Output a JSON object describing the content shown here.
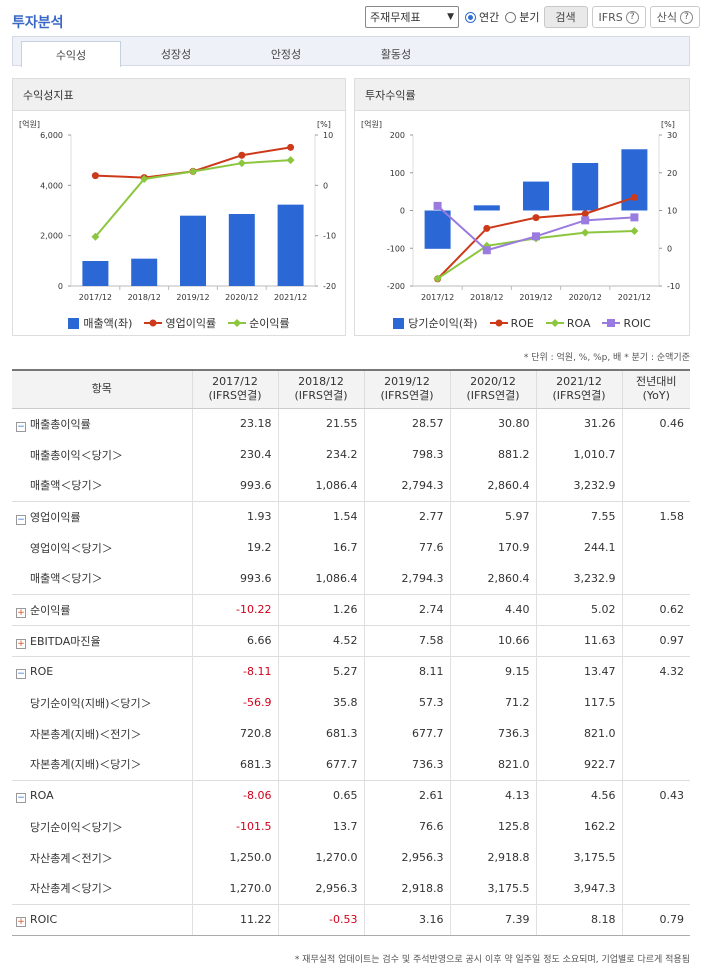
{
  "header": {
    "title": "투자분석"
  },
  "controls": {
    "select_value": "주재무제표",
    "radio_annual": "연간",
    "radio_quarter": "분기",
    "search_button": "검색",
    "ifrs_button": "IFRS",
    "formula_button": "산식",
    "help": "?"
  },
  "tabs": [
    "수익성",
    "성장성",
    "안정성",
    "활동성"
  ],
  "colors": {
    "bar": "#2b68d6",
    "red": "#cc3a1a",
    "green": "#8cc63f",
    "purple": "#9a7be0",
    "title": "#3a67c5"
  },
  "left_panel": {
    "title": "수익성지표"
  },
  "right_panel": {
    "title": "투자수익률"
  },
  "chart_data": [
    {
      "type": "bar",
      "title": "수익성지표",
      "categories": [
        "2017/12",
        "2018/12",
        "2019/12",
        "2020/12",
        "2021/12"
      ],
      "left_unit": "[억원]",
      "right_unit": "[%]",
      "ylim_left": [
        0,
        6000
      ],
      "ylim_right": [
        -20,
        10
      ],
      "left_ticks": [
        "6,000",
        "4,000",
        "2,000",
        "0"
      ],
      "right_ticks": [
        "10",
        "0",
        "-10",
        "-20"
      ],
      "series": [
        {
          "name": "매출액(좌)",
          "kind": "bar",
          "axis": "left",
          "values": [
            993.6,
            1086.4,
            2794.3,
            2860.4,
            3232.9
          ]
        },
        {
          "name": "영업이익률",
          "kind": "line",
          "axis": "right",
          "values": [
            1.93,
            1.54,
            2.77,
            5.97,
            7.55
          ]
        },
        {
          "name": "순이익률",
          "kind": "line",
          "axis": "right",
          "values": [
            -10.22,
            1.26,
            2.74,
            4.4,
            5.02
          ]
        }
      ]
    },
    {
      "type": "bar",
      "title": "투자수익률",
      "categories": [
        "2017/12",
        "2018/12",
        "2019/12",
        "2020/12",
        "2021/12"
      ],
      "left_unit": "[억원]",
      "right_unit": "[%]",
      "ylim_left": [
        -200,
        200
      ],
      "ylim_right": [
        -10,
        30
      ],
      "left_ticks": [
        "200",
        "100",
        "0",
        "-100",
        "-200"
      ],
      "right_ticks": [
        "30",
        "20",
        "10",
        "0",
        "-10"
      ],
      "series": [
        {
          "name": "당기순이익(좌)",
          "kind": "bar",
          "axis": "left",
          "values": [
            -101.5,
            13.7,
            76.6,
            125.8,
            162.2
          ]
        },
        {
          "name": "ROE",
          "kind": "line",
          "axis": "right",
          "values": [
            -8.11,
            5.27,
            8.11,
            9.15,
            13.47
          ]
        },
        {
          "name": "ROA",
          "kind": "line",
          "axis": "right",
          "values": [
            -8.06,
            0.65,
            2.61,
            4.13,
            4.56
          ]
        },
        {
          "name": "ROIC",
          "kind": "line",
          "axis": "right",
          "values": [
            11.22,
            -0.53,
            3.16,
            7.39,
            8.18
          ]
        }
      ]
    }
  ],
  "note_unit": "* 단위 : 억원, %, %p, 배   * 분기 : 순액기준",
  "table": {
    "headers": [
      "항목",
      "2017/12\n(IFRS연결)",
      "2018/12\n(IFRS연결)",
      "2019/12\n(IFRS연결)",
      "2020/12\n(IFRS연결)",
      "2021/12\n(IFRS연결)",
      "전년대비\n(YoY)"
    ],
    "add_col": "+",
    "rows": [
      {
        "label": "매출총이익률",
        "toggle": "−",
        "values": [
          "23.18",
          "21.55",
          "28.57",
          "30.80",
          "31.26",
          "0.46"
        ]
      },
      {
        "label": "매출총이익＜당기＞",
        "values": [
          "230.4",
          "234.2",
          "798.3",
          "881.2",
          "1,010.7",
          ""
        ]
      },
      {
        "label": "매출액＜당기＞",
        "values": [
          "993.6",
          "1,086.4",
          "2,794.3",
          "2,860.4",
          "3,232.9",
          ""
        ]
      },
      {
        "label": "영업이익률",
        "toggle": "−",
        "values": [
          "1.93",
          "1.54",
          "2.77",
          "5.97",
          "7.55",
          "1.58"
        ]
      },
      {
        "label": "영업이익＜당기＞",
        "values": [
          "19.2",
          "16.7",
          "77.6",
          "170.9",
          "244.1",
          ""
        ]
      },
      {
        "label": "매출액＜당기＞",
        "values": [
          "993.6",
          "1,086.4",
          "2,794.3",
          "2,860.4",
          "3,232.9",
          ""
        ]
      },
      {
        "label": "순이익률",
        "toggle": "+",
        "values": [
          "-10.22",
          "1.26",
          "2.74",
          "4.40",
          "5.02",
          "0.62"
        ]
      },
      {
        "label": "EBITDA마진율",
        "toggle": "+",
        "values": [
          "6.66",
          "4.52",
          "7.58",
          "10.66",
          "11.63",
          "0.97"
        ]
      },
      {
        "label": "ROE",
        "toggle": "−",
        "values": [
          "-8.11",
          "5.27",
          "8.11",
          "9.15",
          "13.47",
          "4.32"
        ]
      },
      {
        "label": "당기순이익(지배)＜당기＞",
        "values": [
          "-56.9",
          "35.8",
          "57.3",
          "71.2",
          "117.5",
          ""
        ]
      },
      {
        "label": "자본총계(지배)＜전기＞",
        "values": [
          "720.8",
          "681.3",
          "677.7",
          "736.3",
          "821.0",
          ""
        ]
      },
      {
        "label": "자본총계(지배)＜당기＞",
        "values": [
          "681.3",
          "677.7",
          "736.3",
          "821.0",
          "922.7",
          ""
        ]
      },
      {
        "label": "ROA",
        "toggle": "−",
        "values": [
          "-8.06",
          "0.65",
          "2.61",
          "4.13",
          "4.56",
          "0.43"
        ]
      },
      {
        "label": "당기순이익＜당기＞",
        "values": [
          "-101.5",
          "13.7",
          "76.6",
          "125.8",
          "162.2",
          ""
        ]
      },
      {
        "label": "자산총계＜전기＞",
        "values": [
          "1,250.0",
          "1,270.0",
          "2,956.3",
          "2,918.8",
          "3,175.5",
          ""
        ]
      },
      {
        "label": "자산총계＜당기＞",
        "values": [
          "1,270.0",
          "2,956.3",
          "2,918.8",
          "3,175.5",
          "3,947.3",
          ""
        ]
      },
      {
        "label": "ROIC",
        "toggle": "+",
        "values": [
          "11.22",
          "-0.53",
          "3.16",
          "7.39",
          "8.18",
          "0.79"
        ]
      }
    ]
  },
  "note_footer": "* 재무실적 업데이트는 검수 및 주석반영으로 공시 이후 약 일주일 정도 소요되며, 기업별로 다르게 적용됨"
}
